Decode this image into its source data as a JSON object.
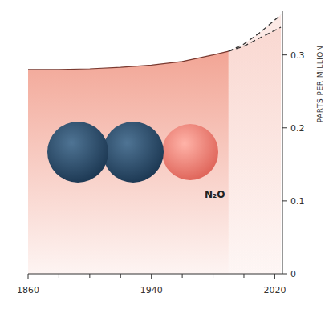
{
  "chart_data": {
    "type": "area",
    "annotations": [
      "N₂O"
    ],
    "ylabel": "PARTS PER MILLION",
    "x": [
      1860,
      1880,
      1900,
      1920,
      1940,
      1960,
      1980,
      1990,
      2000,
      2010,
      2024
    ],
    "series": [
      {
        "type": "area",
        "color": "#f2a595",
        "line_style": "solid",
        "values": [
          0.28,
          0.28,
          0.281,
          0.283,
          0.286,
          0.291,
          0.3,
          0.305,
          null,
          null,
          null
        ]
      },
      {
        "type": "line",
        "color": "#333333",
        "line_style": "dashed",
        "values": [
          null,
          null,
          null,
          null,
          null,
          null,
          null,
          0.305,
          0.315,
          0.33,
          0.355
        ]
      },
      {
        "type": "line",
        "color": "#333333",
        "line_style": "dashed",
        "values": [
          null,
          null,
          null,
          null,
          null,
          null,
          null,
          0.305,
          0.312,
          0.323,
          0.338
        ]
      }
    ],
    "xlim": [
      1860,
      2025
    ],
    "xticks": [
      1860,
      1940,
      2020
    ],
    "ylim": [
      0,
      0.36
    ],
    "yticks": [
      0,
      0.1,
      0.2,
      0.3
    ]
  }
}
